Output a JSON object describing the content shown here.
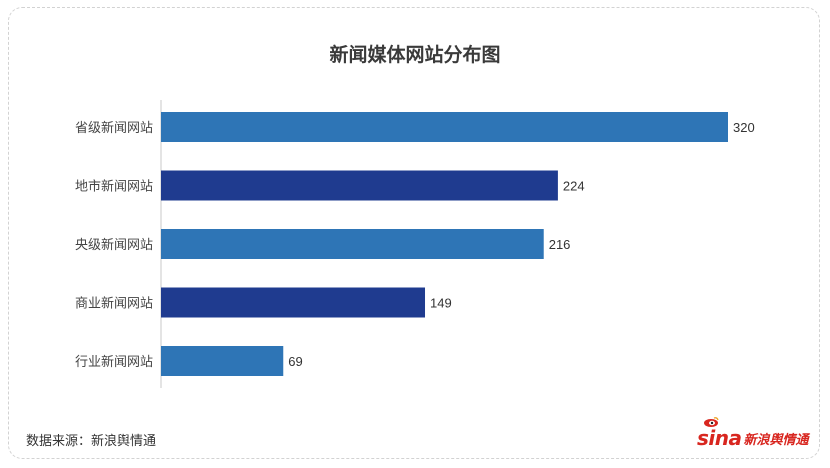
{
  "chart_data": {
    "type": "bar",
    "orientation": "horizontal",
    "title": "新闻媒体网站分布图",
    "categories": [
      "省级新闻网站",
      "地市新闻网站",
      "央级新闻网站",
      "商业新闻网站",
      "行业新闻网站"
    ],
    "values": [
      320,
      224,
      216,
      149,
      69
    ],
    "bar_colors": [
      "#2e75b6",
      "#1f3b8f",
      "#2e75b6",
      "#1f3b8f",
      "#2e75b6"
    ],
    "xlim": [
      0,
      320
    ],
    "grid": false,
    "data_labels": true
  },
  "footer": {
    "source": "数据来源：新浪舆情通",
    "logo_sina": "sina",
    "logo_text": "新浪舆情通"
  }
}
